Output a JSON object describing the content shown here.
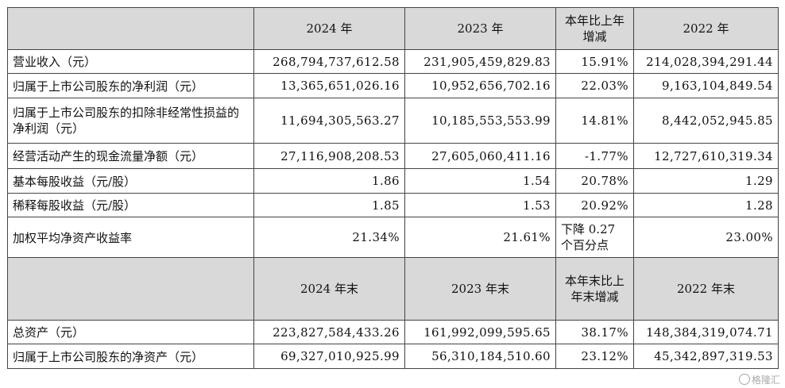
{
  "header1": {
    "blank": "",
    "col1": "2024 年",
    "col2": "2023 年",
    "col3": "本年比上年增减",
    "col4": "2022 年"
  },
  "rows1": [
    {
      "label": "营业收入（元）",
      "v2024": "268,794,737,612.58",
      "v2023": "231,905,459,829.83",
      "change": "15.91%",
      "v2022": "214,028,394,291.44"
    },
    {
      "label": "归属于上市公司股东的净利润（元）",
      "v2024": "13,365,651,026.16",
      "v2023": "10,952,656,702.16",
      "change": "22.03%",
      "v2022": "9,163,104,849.54"
    },
    {
      "label": "归属于上市公司股东的扣除非经常性损益的净利润（元）",
      "v2024": "11,694,305,563.27",
      "v2023": "10,185,553,553.99",
      "change": "14.81%",
      "v2022": "8,442,052,945.85"
    },
    {
      "label": "经营活动产生的现金流量净额（元）",
      "v2024": "27,116,908,208.53",
      "v2023": "27,605,060,411.16",
      "change": "-1.77%",
      "v2022": "12,727,610,319.34"
    },
    {
      "label": "基本每股收益（元/股）",
      "v2024": "1.86",
      "v2023": "1.54",
      "change": "20.78%",
      "v2022": "1.29"
    },
    {
      "label": "稀释每股收益（元/股）",
      "v2024": "1.85",
      "v2023": "1.53",
      "change": "20.92%",
      "v2022": "1.28"
    },
    {
      "label": "加权平均净资产收益率",
      "v2024": "21.34%",
      "v2023": "21.61%",
      "change": "下降 0.27 个百分点",
      "v2022": "23.00%"
    }
  ],
  "header2": {
    "blank": "",
    "col1": "2024 年末",
    "col2": "2023 年末",
    "col3": "本年末比上年末增减",
    "col4": "2022 年末"
  },
  "rows2": [
    {
      "label": "总资产（元）",
      "v2024": "223,827,584,433.26",
      "v2023": "161,992,099,595.65",
      "change": "38.17%",
      "v2022": "148,384,319,074.71"
    },
    {
      "label": "归属于上市公司股东的净资产（元）",
      "v2024": "69,327,010,925.99",
      "v2023": "56,310,184,510.60",
      "change": "23.12%",
      "v2022": "45,342,897,319.53"
    }
  ],
  "watermark": "格隆汇"
}
